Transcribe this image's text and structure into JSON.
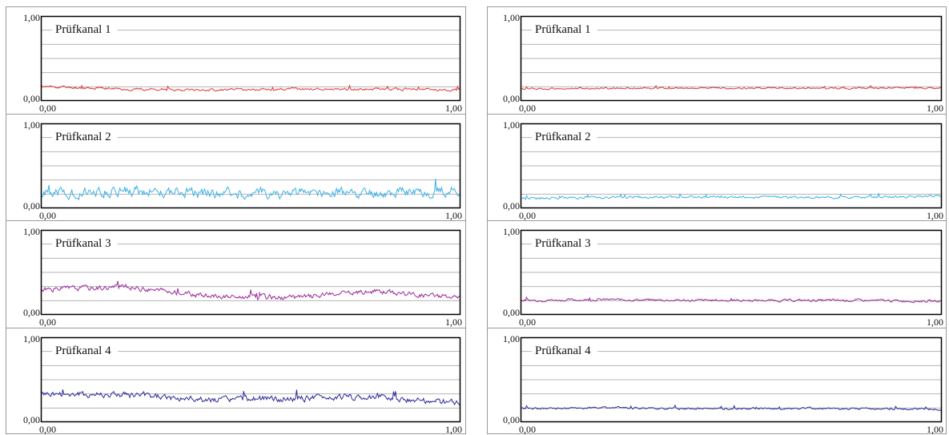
{
  "chart_data": [
    {
      "type": "line",
      "panel": "left",
      "charts": [
        {
          "channel_label": "Prüfkanal 1",
          "color": "#e0353a",
          "baseline": 0.15,
          "amplitude": 0.012,
          "drift": [
            0.17,
            0.14,
            0.13,
            0.14,
            0.14,
            0.13
          ],
          "seed": 11
        },
        {
          "channel_label": "Prüfkanal 2",
          "color": "#3fb1e6",
          "baseline": 0.18,
          "amplitude": 0.05,
          "drift": [
            0.17,
            0.21,
            0.18,
            0.17,
            0.19,
            0.21
          ],
          "seed": 21
        },
        {
          "channel_label": "Prüfkanal 3",
          "color": "#9a2a9a",
          "baseline": 0.25,
          "amplitude": 0.025,
          "drift": [
            0.3,
            0.33,
            0.22,
            0.2,
            0.28,
            0.2
          ],
          "seed": 31
        },
        {
          "channel_label": "Prüfkanal 4",
          "color": "#2a2a9a",
          "baseline": 0.27,
          "amplitude": 0.03,
          "drift": [
            0.33,
            0.32,
            0.26,
            0.28,
            0.3,
            0.22
          ],
          "seed": 41
        }
      ],
      "ymin_label": "0,00",
      "ymax_label": "1,00",
      "xmin_label": "0,00",
      "xmax_label": "1,00",
      "ylim": [
        0,
        1
      ],
      "xlim": [
        0,
        1
      ],
      "grid": true
    },
    {
      "type": "line",
      "panel": "right",
      "charts": [
        {
          "channel_label": "Prüfkanal 1",
          "color": "#e0353a",
          "baseline": 0.15,
          "amplitude": 0.008,
          "drift": [
            0.14,
            0.15,
            0.15,
            0.15,
            0.15,
            0.15
          ],
          "seed": 12
        },
        {
          "channel_label": "Prüfkanal 2",
          "color": "#3fb1e6",
          "baseline": 0.13,
          "amplitude": 0.012,
          "drift": [
            0.12,
            0.13,
            0.13,
            0.13,
            0.13,
            0.14
          ],
          "seed": 22
        },
        {
          "channel_label": "Prüfkanal 3",
          "color": "#9a2a9a",
          "baseline": 0.17,
          "amplitude": 0.012,
          "drift": [
            0.17,
            0.18,
            0.17,
            0.17,
            0.17,
            0.16
          ],
          "seed": 32
        },
        {
          "channel_label": "Prüfkanal 4",
          "color": "#2a2a9a",
          "baseline": 0.16,
          "amplitude": 0.01,
          "drift": [
            0.16,
            0.17,
            0.16,
            0.16,
            0.16,
            0.15
          ],
          "seed": 42
        }
      ],
      "ymin_label": "0,00",
      "ymax_label": "1,00",
      "xmin_label": "0,00",
      "xmax_label": "1,00",
      "ylim": [
        0,
        1
      ],
      "xlim": [
        0,
        1
      ],
      "grid": true
    }
  ]
}
